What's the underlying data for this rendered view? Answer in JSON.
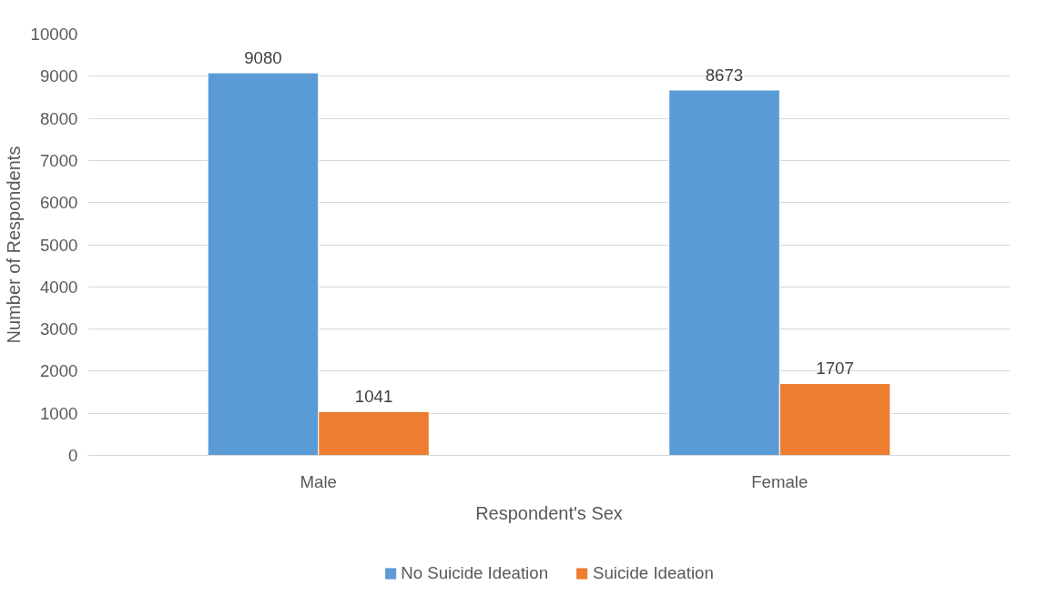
{
  "chart_data": {
    "type": "bar",
    "xlabel": "Respondent's Sex",
    "ylabel": "Number of Respondents",
    "categories": [
      "Male",
      "Female"
    ],
    "series": [
      {
        "name": "No Suicide Ideation",
        "color": "#5b9bd5",
        "values": [
          9080,
          8673
        ]
      },
      {
        "name": "Suicide Ideation",
        "color": "#ed7d31",
        "values": [
          1041,
          1707
        ]
      }
    ],
    "ylim": [
      0,
      10000
    ],
    "yticks": [
      0,
      1000,
      2000,
      3000,
      4000,
      5000,
      6000,
      7000,
      8000,
      9000,
      10000
    ],
    "grid": "y",
    "legend": "bottom",
    "data_labels": true
  }
}
